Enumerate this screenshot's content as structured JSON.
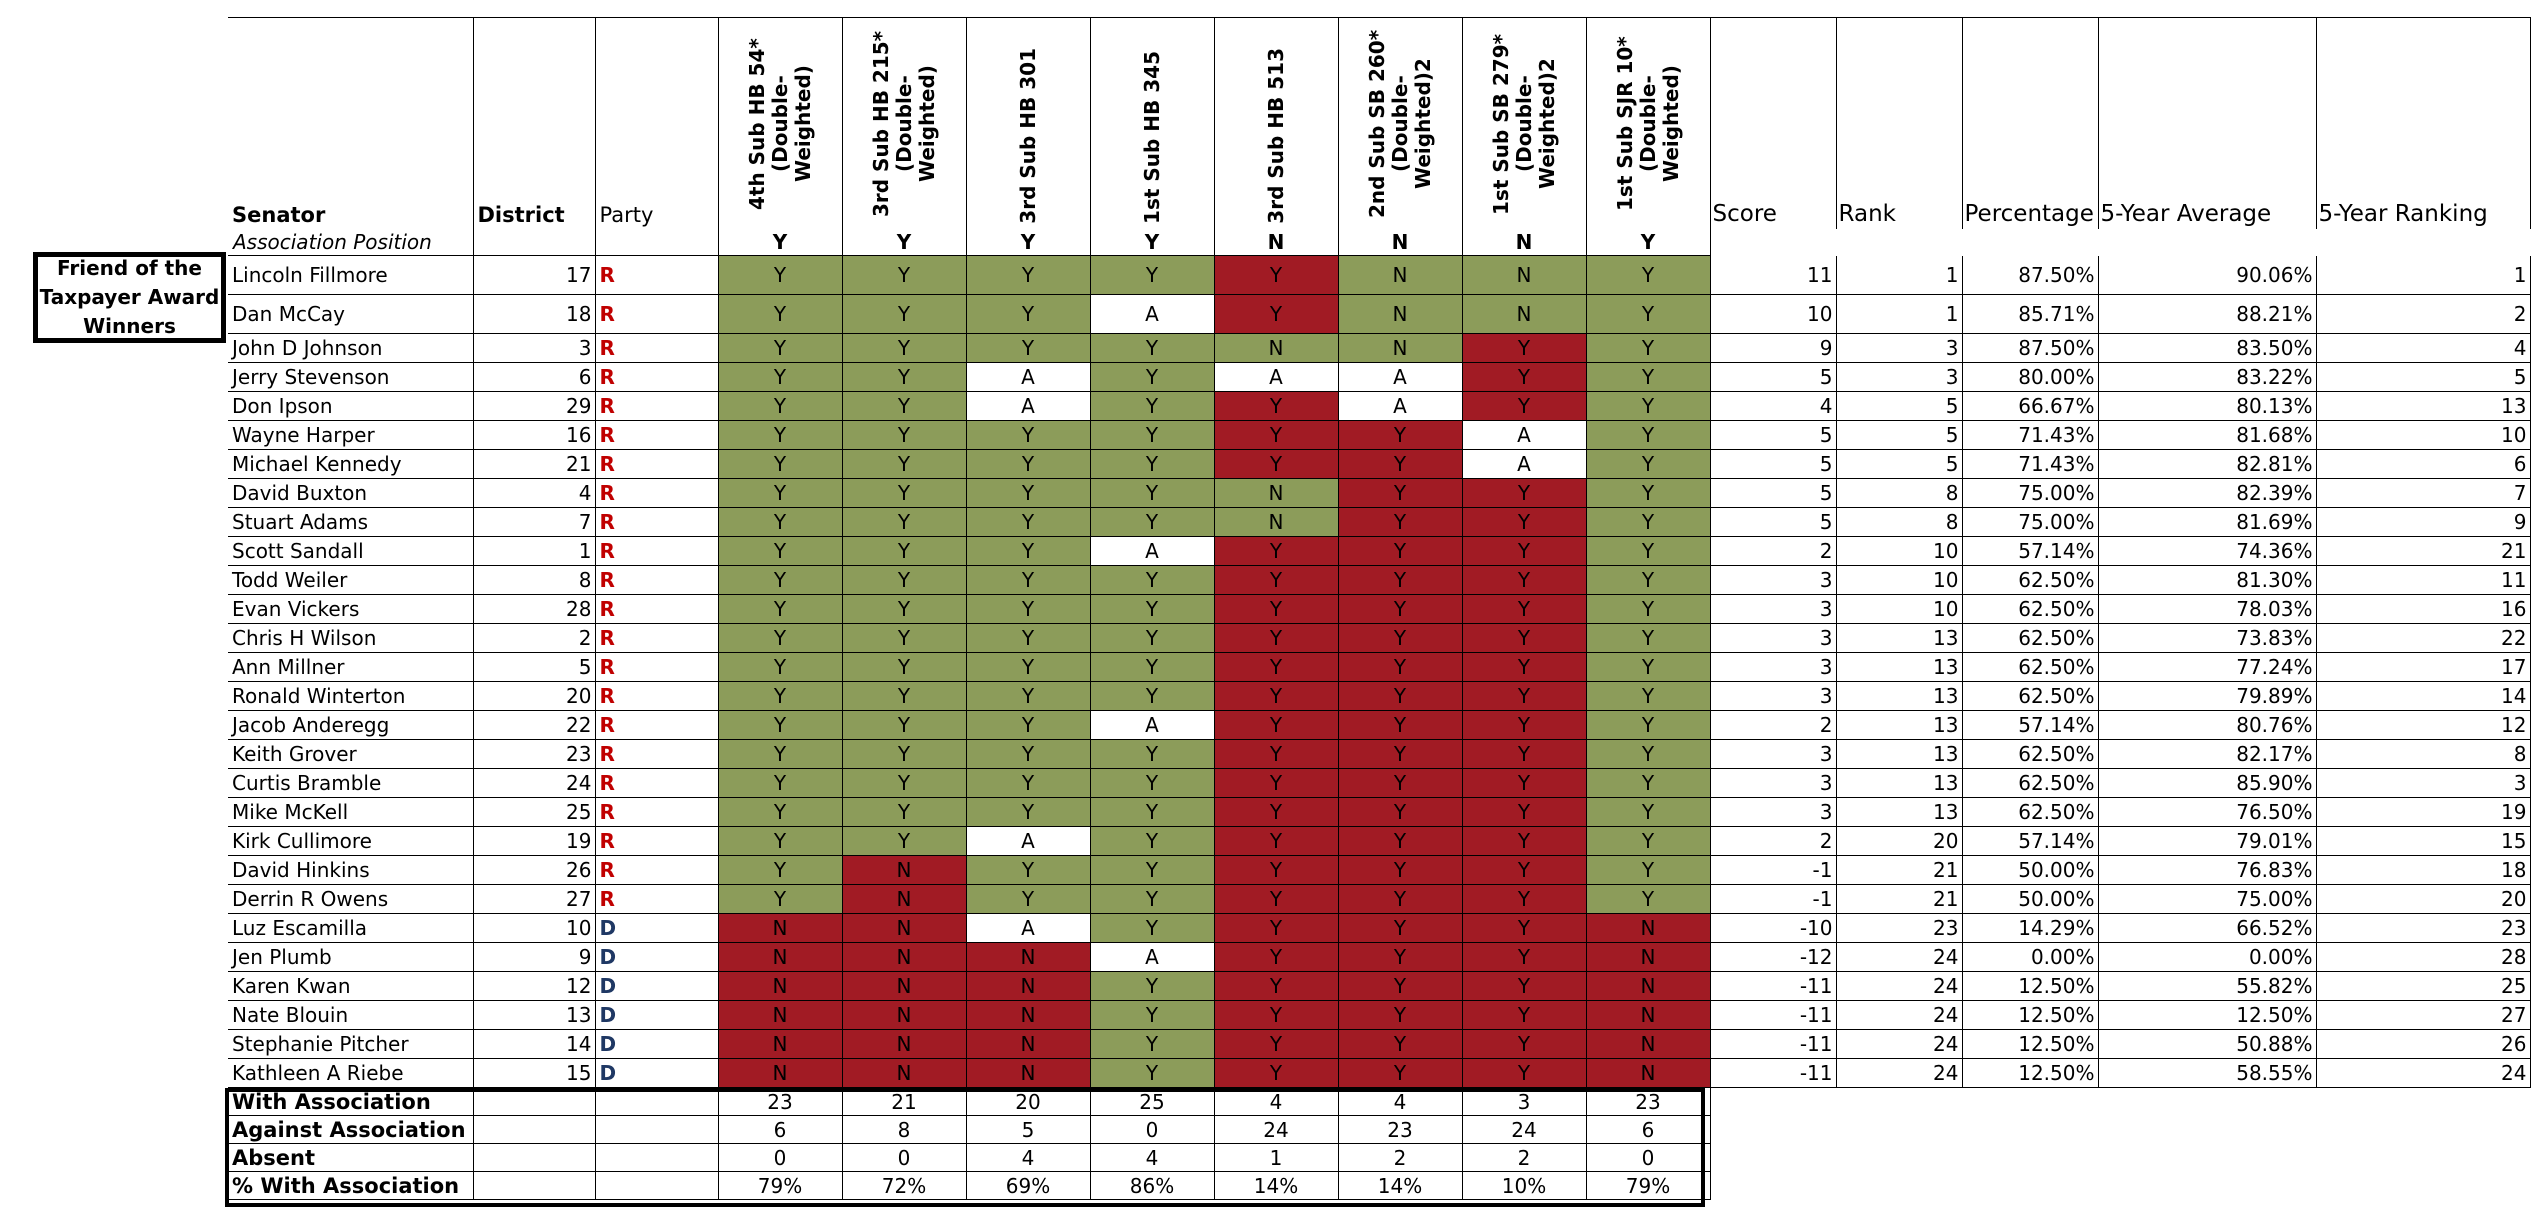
{
  "award_box": {
    "lines": [
      "Friend of the",
      "Taxpayer Award",
      "Winners"
    ]
  },
  "headers": {
    "senator": "Senator",
    "district": "District",
    "party": "Party",
    "score": "Score",
    "rank": "Rank",
    "percentage": "Percentage",
    "avg": "5-Year Average",
    "ranking": "5-Year Ranking"
  },
  "bills": [
    "4th Sub HB 54* (Double-Weighted)",
    "3rd Sub HB 215* (Double-Weighted)",
    "3rd Sub HB 301",
    "1st Sub HB 345",
    "3rd Sub HB 513",
    "2nd Sub SB 260* (Double-Weighted)2",
    "1st Sub SB 279* (Double-Weighted)2",
    "1st Sub SJR 10* (Double-Weighted)"
  ],
  "position_label": "Association Position",
  "positions": [
    "Y",
    "Y",
    "Y",
    "Y",
    "N",
    "N",
    "N",
    "Y"
  ],
  "colors": {
    "with": "#8c9c5a",
    "against": "#a11b24",
    "absent": "#ffffff",
    "republican": "#c00000",
    "democrat": "#1f3864"
  },
  "senators": [
    {
      "name": "Lincoln Fillmore",
      "district": "17",
      "party": "R",
      "votes": [
        "Y",
        "Y",
        "Y",
        "Y",
        "Y",
        "N",
        "N",
        "Y"
      ],
      "score": "11",
      "rank": "1",
      "pct": "87.50%",
      "avg": "90.06%",
      "ranking": "1"
    },
    {
      "name": "Dan McCay",
      "district": "18",
      "party": "R",
      "votes": [
        "Y",
        "Y",
        "Y",
        "A",
        "Y",
        "N",
        "N",
        "Y"
      ],
      "score": "10",
      "rank": "1",
      "pct": "85.71%",
      "avg": "88.21%",
      "ranking": "2"
    },
    {
      "name": "John D Johnson",
      "district": "3",
      "party": "R",
      "votes": [
        "Y",
        "Y",
        "Y",
        "Y",
        "N",
        "N",
        "Y",
        "Y"
      ],
      "score": "9",
      "rank": "3",
      "pct": "87.50%",
      "avg": "83.50%",
      "ranking": "4"
    },
    {
      "name": "Jerry Stevenson",
      "district": "6",
      "party": "R",
      "votes": [
        "Y",
        "Y",
        "A",
        "Y",
        "A",
        "A",
        "Y",
        "Y"
      ],
      "score": "5",
      "rank": "3",
      "pct": "80.00%",
      "avg": "83.22%",
      "ranking": "5"
    },
    {
      "name": "Don Ipson",
      "district": "29",
      "party": "R",
      "votes": [
        "Y",
        "Y",
        "A",
        "Y",
        "Y",
        "A",
        "Y",
        "Y"
      ],
      "score": "4",
      "rank": "5",
      "pct": "66.67%",
      "avg": "80.13%",
      "ranking": "13"
    },
    {
      "name": "Wayne Harper",
      "district": "16",
      "party": "R",
      "votes": [
        "Y",
        "Y",
        "Y",
        "Y",
        "Y",
        "Y",
        "A",
        "Y"
      ],
      "score": "5",
      "rank": "5",
      "pct": "71.43%",
      "avg": "81.68%",
      "ranking": "10"
    },
    {
      "name": "Michael Kennedy",
      "district": "21",
      "party": "R",
      "votes": [
        "Y",
        "Y",
        "Y",
        "Y",
        "Y",
        "Y",
        "A",
        "Y"
      ],
      "score": "5",
      "rank": "5",
      "pct": "71.43%",
      "avg": "82.81%",
      "ranking": "6"
    },
    {
      "name": "David Buxton",
      "district": "4",
      "party": "R",
      "votes": [
        "Y",
        "Y",
        "Y",
        "Y",
        "N",
        "Y",
        "Y",
        "Y"
      ],
      "score": "5",
      "rank": "8",
      "pct": "75.00%",
      "avg": "82.39%",
      "ranking": "7"
    },
    {
      "name": "Stuart Adams",
      "district": "7",
      "party": "R",
      "votes": [
        "Y",
        "Y",
        "Y",
        "Y",
        "N",
        "Y",
        "Y",
        "Y"
      ],
      "score": "5",
      "rank": "8",
      "pct": "75.00%",
      "avg": "81.69%",
      "ranking": "9"
    },
    {
      "name": "Scott Sandall",
      "district": "1",
      "party": "R",
      "votes": [
        "Y",
        "Y",
        "Y",
        "A",
        "Y",
        "Y",
        "Y",
        "Y"
      ],
      "score": "2",
      "rank": "10",
      "pct": "57.14%",
      "avg": "74.36%",
      "ranking": "21"
    },
    {
      "name": "Todd Weiler",
      "district": "8",
      "party": "R",
      "votes": [
        "Y",
        "Y",
        "Y",
        "Y",
        "Y",
        "Y",
        "Y",
        "Y"
      ],
      "score": "3",
      "rank": "10",
      "pct": "62.50%",
      "avg": "81.30%",
      "ranking": "11"
    },
    {
      "name": "Evan Vickers",
      "district": "28",
      "party": "R",
      "votes": [
        "Y",
        "Y",
        "Y",
        "Y",
        "Y",
        "Y",
        "Y",
        "Y"
      ],
      "score": "3",
      "rank": "10",
      "pct": "62.50%",
      "avg": "78.03%",
      "ranking": "16"
    },
    {
      "name": "Chris H Wilson",
      "district": "2",
      "party": "R",
      "votes": [
        "Y",
        "Y",
        "Y",
        "Y",
        "Y",
        "Y",
        "Y",
        "Y"
      ],
      "score": "3",
      "rank": "13",
      "pct": "62.50%",
      "avg": "73.83%",
      "ranking": "22"
    },
    {
      "name": "Ann Millner",
      "district": "5",
      "party": "R",
      "votes": [
        "Y",
        "Y",
        "Y",
        "Y",
        "Y",
        "Y",
        "Y",
        "Y"
      ],
      "score": "3",
      "rank": "13",
      "pct": "62.50%",
      "avg": "77.24%",
      "ranking": "17"
    },
    {
      "name": "Ronald Winterton",
      "district": "20",
      "party": "R",
      "votes": [
        "Y",
        "Y",
        "Y",
        "Y",
        "Y",
        "Y",
        "Y",
        "Y"
      ],
      "score": "3",
      "rank": "13",
      "pct": "62.50%",
      "avg": "79.89%",
      "ranking": "14"
    },
    {
      "name": "Jacob Anderegg",
      "district": "22",
      "party": "R",
      "votes": [
        "Y",
        "Y",
        "Y",
        "A",
        "Y",
        "Y",
        "Y",
        "Y"
      ],
      "score": "2",
      "rank": "13",
      "pct": "57.14%",
      "avg": "80.76%",
      "ranking": "12"
    },
    {
      "name": "Keith Grover",
      "district": "23",
      "party": "R",
      "votes": [
        "Y",
        "Y",
        "Y",
        "Y",
        "Y",
        "Y",
        "Y",
        "Y"
      ],
      "score": "3",
      "rank": "13",
      "pct": "62.50%",
      "avg": "82.17%",
      "ranking": "8"
    },
    {
      "name": "Curtis Bramble",
      "district": "24",
      "party": "R",
      "votes": [
        "Y",
        "Y",
        "Y",
        "Y",
        "Y",
        "Y",
        "Y",
        "Y"
      ],
      "score": "3",
      "rank": "13",
      "pct": "62.50%",
      "avg": "85.90%",
      "ranking": "3"
    },
    {
      "name": "Mike McKell",
      "district": "25",
      "party": "R",
      "votes": [
        "Y",
        "Y",
        "Y",
        "Y",
        "Y",
        "Y",
        "Y",
        "Y"
      ],
      "score": "3",
      "rank": "13",
      "pct": "62.50%",
      "avg": "76.50%",
      "ranking": "19"
    },
    {
      "name": "Kirk Cullimore",
      "district": "19",
      "party": "R",
      "votes": [
        "Y",
        "Y",
        "A",
        "Y",
        "Y",
        "Y",
        "Y",
        "Y"
      ],
      "score": "2",
      "rank": "20",
      "pct": "57.14%",
      "avg": "79.01%",
      "ranking": "15"
    },
    {
      "name": "David Hinkins",
      "district": "26",
      "party": "R",
      "votes": [
        "Y",
        "N",
        "Y",
        "Y",
        "Y",
        "Y",
        "Y",
        "Y"
      ],
      "score": "-1",
      "rank": "21",
      "pct": "50.00%",
      "avg": "76.83%",
      "ranking": "18"
    },
    {
      "name": "Derrin R Owens",
      "district": "27",
      "party": "R",
      "votes": [
        "Y",
        "N",
        "Y",
        "Y",
        "Y",
        "Y",
        "Y",
        "Y"
      ],
      "score": "-1",
      "rank": "21",
      "pct": "50.00%",
      "avg": "75.00%",
      "ranking": "20"
    },
    {
      "name": "Luz Escamilla",
      "district": "10",
      "party": "D",
      "votes": [
        "N",
        "N",
        "A",
        "Y",
        "Y",
        "Y",
        "Y",
        "N"
      ],
      "score": "-10",
      "rank": "23",
      "pct": "14.29%",
      "avg": "66.52%",
      "ranking": "23"
    },
    {
      "name": "Jen Plumb",
      "district": "9",
      "party": "D",
      "votes": [
        "N",
        "N",
        "N",
        "A",
        "Y",
        "Y",
        "Y",
        "N"
      ],
      "score": "-12",
      "rank": "24",
      "pct": "0.00%",
      "avg": "0.00%",
      "ranking": "28"
    },
    {
      "name": "Karen Kwan",
      "district": "12",
      "party": "D",
      "votes": [
        "N",
        "N",
        "N",
        "Y",
        "Y",
        "Y",
        "Y",
        "N"
      ],
      "score": "-11",
      "rank": "24",
      "pct": "12.50%",
      "avg": "55.82%",
      "ranking": "25"
    },
    {
      "name": "Nate Blouin",
      "district": "13",
      "party": "D",
      "votes": [
        "N",
        "N",
        "N",
        "Y",
        "Y",
        "Y",
        "Y",
        "N"
      ],
      "score": "-11",
      "rank": "24",
      "pct": "12.50%",
      "avg": "12.50%",
      "ranking": "27"
    },
    {
      "name": "Stephanie Pitcher",
      "district": "14",
      "party": "D",
      "votes": [
        "N",
        "N",
        "N",
        "Y",
        "Y",
        "Y",
        "Y",
        "N"
      ],
      "score": "-11",
      "rank": "24",
      "pct": "12.50%",
      "avg": "50.88%",
      "ranking": "26"
    },
    {
      "name": "Kathleen A Riebe",
      "district": "15",
      "party": "D",
      "votes": [
        "N",
        "N",
        "N",
        "Y",
        "Y",
        "Y",
        "Y",
        "N"
      ],
      "score": "-11",
      "rank": "24",
      "pct": "12.50%",
      "avg": "58.55%",
      "ranking": "24"
    }
  ],
  "summary": [
    {
      "label": "With Association",
      "values": [
        "23",
        "21",
        "20",
        "25",
        "4",
        "4",
        "3",
        "23"
      ]
    },
    {
      "label": "Against Association",
      "values": [
        "6",
        "8",
        "5",
        "0",
        "24",
        "23",
        "24",
        "6"
      ]
    },
    {
      "label": "Absent",
      "values": [
        "0",
        "0",
        "4",
        "4",
        "1",
        "2",
        "2",
        "0"
      ]
    },
    {
      "label": "% With Association",
      "values": [
        "79%",
        "72%",
        "69%",
        "86%",
        "14%",
        "14%",
        "10%",
        "79%"
      ]
    }
  ]
}
